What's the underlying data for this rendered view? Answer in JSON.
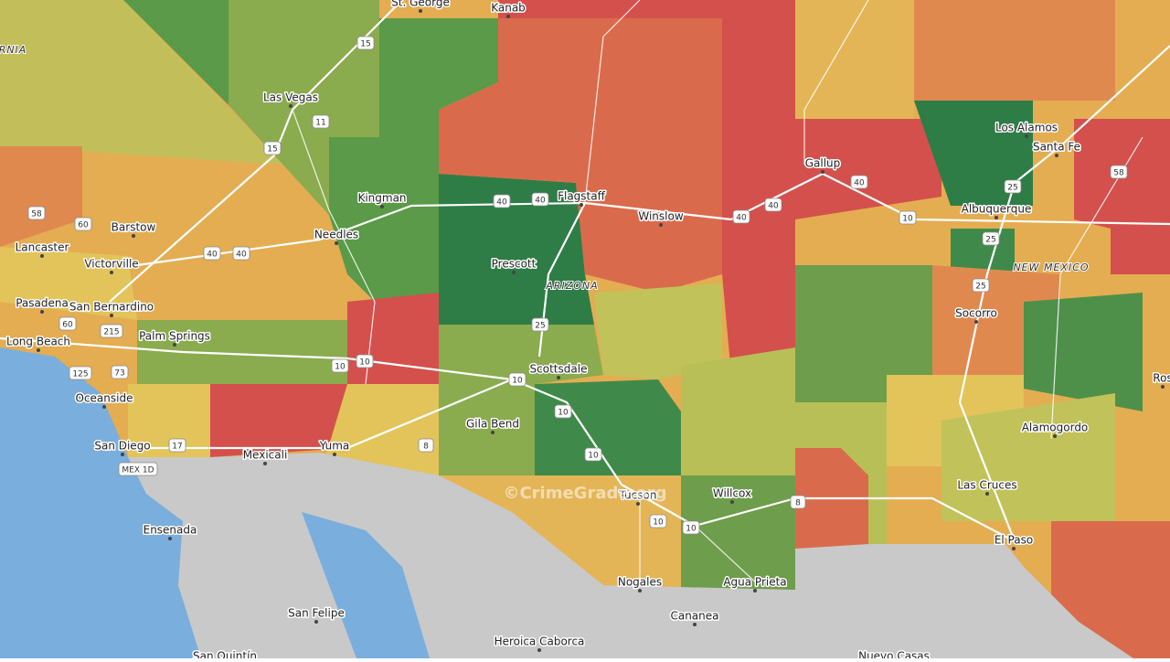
{
  "map": {
    "places": [
      "St. George",
      "Kanab",
      "Las Vegas",
      "Kingman",
      "Flagstaff",
      "Winslow",
      "Gallup",
      "Los Alamos",
      "Santa Fe",
      "Albuquerque",
      "Prescott",
      "Barstow",
      "Lancaster",
      "Victorville",
      "Needles",
      "Pasadena",
      "San Bernardino",
      "Long Beach",
      "Palm Springs",
      "Oceanside",
      "San Diego",
      "Mexicali",
      "Yuma",
      "Gila Bend",
      "Scottsdale",
      "Tucson",
      "Willcox",
      "Nogales",
      "Agua Prieta",
      "Cananea",
      "Heroica Caborca",
      "San Felipe",
      "Ensenada",
      "Socorro",
      "Alamogordo",
      "Las Cruces",
      "El Paso",
      "Nuevo Casas",
      "San Quintín",
      "Ros"
    ],
    "regions": [
      "ARIZONA",
      "NEW MEXICO",
      "RNIA"
    ],
    "shields": [
      "15",
      "15",
      "11",
      "40",
      "40",
      "40",
      "40",
      "40",
      "40",
      "40",
      "10",
      "10",
      "10",
      "10",
      "10",
      "10",
      "10",
      "10",
      "8",
      "8",
      "17",
      "25",
      "25",
      "25",
      "25",
      "58",
      "58",
      "60",
      "60",
      "215",
      "73",
      "125",
      "MEX 1D"
    ],
    "watermark": "©CrimeGrade.org"
  }
}
